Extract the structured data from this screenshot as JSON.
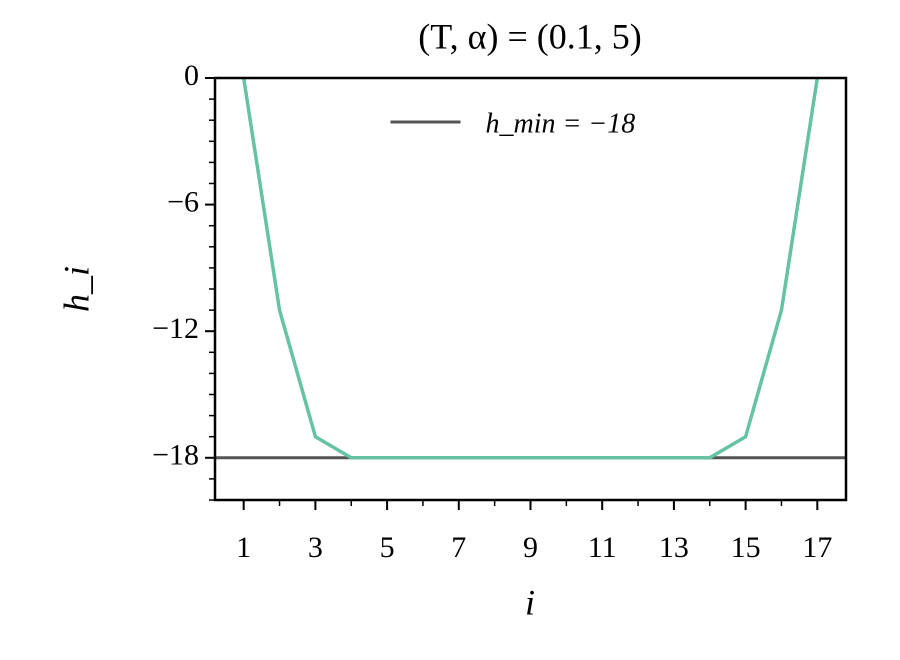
{
  "chart_data": {
    "type": "line",
    "title": "(T, α) = (0.1, 5)",
    "xlabel": "i",
    "ylabel": "h_i",
    "x": [
      1,
      2,
      3,
      4,
      5,
      6,
      7,
      8,
      9,
      10,
      11,
      12,
      13,
      14,
      15,
      16,
      17
    ],
    "series": [
      {
        "name": "h_i",
        "color": "#66c2a5",
        "values": [
          0,
          -11,
          -17,
          -18,
          -18,
          -18,
          -18,
          -18,
          -18,
          -18,
          -18,
          -18,
          -18,
          -18,
          -17,
          -11,
          0
        ]
      }
    ],
    "hlines": [
      {
        "name": "h_min = −18",
        "color": "#555555",
        "value": -18
      }
    ],
    "xlim": [
      0.2,
      17.8
    ],
    "ylim": [
      -20,
      0
    ],
    "xticks": [
      1,
      3,
      5,
      7,
      9,
      11,
      13,
      15,
      17
    ],
    "yticks": [
      0,
      {
        "value": -6,
        "label": "−6"
      },
      {
        "value": -12,
        "label": "−12"
      },
      {
        "value": -18,
        "label": "−18"
      }
    ],
    "xminorticks": [
      2,
      4,
      6,
      8,
      10,
      12,
      14,
      16
    ],
    "yminorticks": [
      -1,
      -2,
      -3,
      -4,
      -5,
      -7,
      -8,
      -9,
      -10,
      -11,
      -13,
      -14,
      -15,
      -16,
      -17,
      -19,
      -20
    ],
    "legend": "upper center",
    "grid": false
  }
}
